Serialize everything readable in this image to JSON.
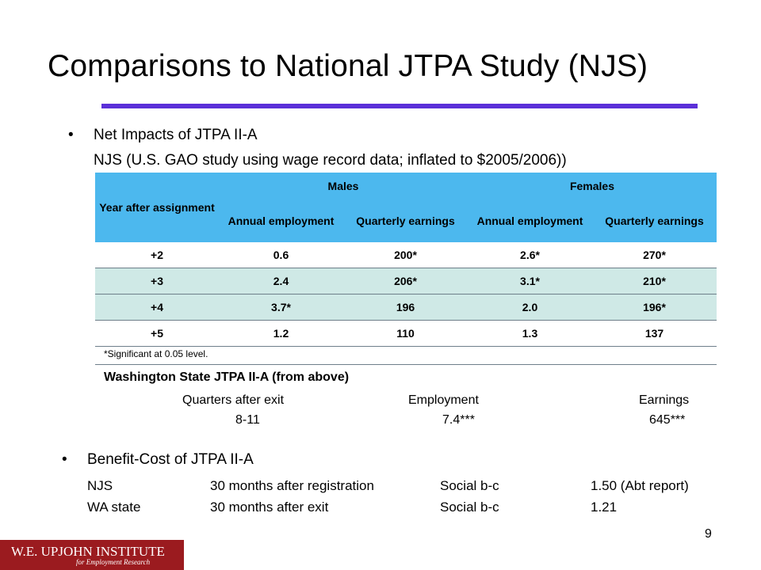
{
  "title": "Comparisons to National JTPA Study (NJS)",
  "bullet1": {
    "bullet": "•",
    "text": "Net Impacts of JTPA II-A",
    "subtext": "NJS (U.S. GAO study using wage record data; inflated to $2005/2006))"
  },
  "table": {
    "col_year": "Year after assignment",
    "group_males": "Males",
    "group_females": "Females",
    "sub_annual": "Annual employment",
    "sub_quarterly": "Quarterly earnings",
    "rows": [
      {
        "year": "+2",
        "m_emp": "0.6",
        "m_earn": "200*",
        "f_emp": "2.6*",
        "f_earn": "270*"
      },
      {
        "year": "+3",
        "m_emp": "2.4",
        "m_earn": "206*",
        "f_emp": "3.1*",
        "f_earn": "210*"
      },
      {
        "year": "+4",
        "m_emp": "3.7*",
        "m_earn": "196",
        "f_emp": "2.0",
        "f_earn": "196*"
      },
      {
        "year": "+5",
        "m_emp": "1.2",
        "m_earn": "110",
        "f_emp": "1.3",
        "f_earn": "137"
      }
    ],
    "note": "*Significant at 0.05 level."
  },
  "wa": {
    "heading": "Washington State JTPA II-A (from above)",
    "col1_header": "Quarters after exit",
    "col2_header": "Employment",
    "col3_header": "Earnings",
    "col1_value": "8-11",
    "col2_value": "7.4***",
    "col3_value": "645***"
  },
  "bullet2": {
    "bullet": "•",
    "text": "Benefit-Cost of JTPA II-A"
  },
  "benefit_cost": [
    {
      "study": "NJS",
      "period": "30 months after registration",
      "measure": "Social b-c",
      "value": "1.50 (Abt report)"
    },
    {
      "study": "WA state",
      "period": "30 months after exit",
      "measure": "Social b-c",
      "value": "1.21"
    }
  ],
  "page_number": "9",
  "logo": {
    "line1": "W.E. UPJOHN INSTITUTE",
    "line2": "for Employment Research"
  }
}
